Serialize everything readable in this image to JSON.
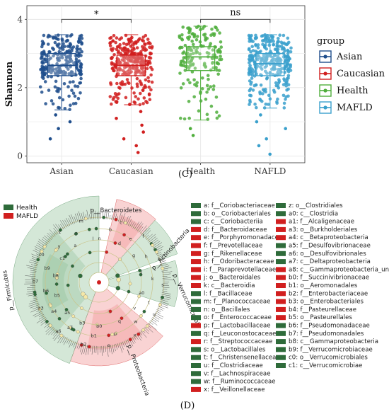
{
  "chart_data": [
    {
      "type": "box",
      "panel_label": "(C)",
      "ylabel": "Shannon",
      "xlabel": "",
      "ylim": [
        -0.2,
        4.4
      ],
      "yticks": [
        0,
        2,
        4
      ],
      "categories": [
        "Asian",
        "Caucasian",
        "Health",
        "NAFLD"
      ],
      "grid": true,
      "legend": {
        "title": "group",
        "position": "right",
        "items": [
          {
            "label": "Asian",
            "color": "#1f4e8c"
          },
          {
            "label": "Caucasian",
            "color": "#d11f1f"
          },
          {
            "label": "Health",
            "color": "#4fae3c"
          },
          {
            "label": "MAFLD",
            "color": "#3aa0cc"
          }
        ]
      },
      "series": [
        {
          "category": "Asian",
          "color": "#1f4e8c",
          "q1": 2.35,
          "median": 2.65,
          "q3": 3.0,
          "whisker_low": 1.35,
          "whisker_high": 3.55,
          "outliers": [
            1.2,
            1.0,
            0.8,
            0.5
          ],
          "n_points": 260
        },
        {
          "category": "Caucasian",
          "color": "#d11f1f",
          "q1": 2.35,
          "median": 2.65,
          "q3": 2.95,
          "whisker_low": 1.5,
          "whisker_high": 3.55,
          "outliers": [
            1.3,
            1.1,
            0.9,
            0.7,
            0.5,
            0.3,
            0.1
          ],
          "n_points": 300
        },
        {
          "category": "Health",
          "color": "#4fae3c",
          "q1": 2.5,
          "median": 2.9,
          "q3": 3.2,
          "whisker_low": 1.05,
          "whisker_high": 3.8,
          "outliers": [
            0.8,
            0.6
          ],
          "n_points": 180
        },
        {
          "category": "NAFLD",
          "color": "#3aa0cc",
          "q1": 2.35,
          "median": 2.7,
          "q3": 3.0,
          "whisker_low": 1.4,
          "whisker_high": 3.55,
          "outliers": [
            1.2,
            1.0,
            0.8,
            0.5,
            0.3,
            0.05
          ],
          "n_points": 320
        }
      ],
      "annotations": [
        {
          "between": [
            "Asian",
            "Caucasian"
          ],
          "text": "*",
          "y": 4.0
        },
        {
          "between": [
            "Health",
            "NAFLD"
          ],
          "text": "ns",
          "y": 4.0
        }
      ]
    },
    {
      "type": "cladogram",
      "panel_label": "(D)",
      "legend": [
        {
          "label": "Health",
          "color": "#2e6b3a"
        },
        {
          "label": "MAFLD",
          "color": "#d11f1f"
        }
      ],
      "phyla": [
        {
          "name": "p__Bacteroidetes",
          "group": "MAFLD"
        },
        {
          "name": "p__Actinobacteria",
          "group": "Health"
        },
        {
          "name": "p__Verrucomicrobia",
          "group": "Health"
        },
        {
          "name": "p__Proteobacteria",
          "group": "MAFLD"
        },
        {
          "name": "p__Firmicutes",
          "group": "Health"
        }
      ],
      "clade_labels": [
        "n",
        "b",
        "c",
        "d",
        "e",
        "f",
        "g",
        "h",
        "i",
        "j",
        "k",
        "s",
        "a0",
        "t",
        "u",
        "v",
        "w",
        "x",
        "q",
        "p",
        "o",
        "b0",
        "b1",
        "b2",
        "b3",
        "a7",
        "a6",
        "a5",
        "a4",
        "a3",
        "b5",
        "b6",
        "b7",
        "b8",
        "b9",
        "c0",
        "c1",
        "y",
        "z",
        "a",
        "r",
        "m",
        "l"
      ],
      "key_left": [
        {
          "text": "a: f__Coriobacteriaceae",
          "group": "Health"
        },
        {
          "text": "b: o__Coriobacteriales",
          "group": "Health"
        },
        {
          "text": "c: c__Coriobacteriia",
          "group": "Health"
        },
        {
          "text": "d: f__Bacteroidaceae",
          "group": "MAFLD"
        },
        {
          "text": "e: f__Porphyromonadaceae",
          "group": "MAFLD"
        },
        {
          "text": "f: f__Prevotellaceae",
          "group": "MAFLD"
        },
        {
          "text": "g: f__Rikenellaceae",
          "group": "MAFLD"
        },
        {
          "text": "h: f__Odoribacteraceae",
          "group": "MAFLD"
        },
        {
          "text": "i: f__Paraprevotellaceae",
          "group": "MAFLD"
        },
        {
          "text": "j: o__Bacteroidales",
          "group": "MAFLD"
        },
        {
          "text": "k: c__Bacteroidia",
          "group": "MAFLD"
        },
        {
          "text": "l: f__Bacillaceae",
          "group": "Health"
        },
        {
          "text": "m: f__Planococcaceae",
          "group": "Health"
        },
        {
          "text": "n: o__Bacillales",
          "group": "Health"
        },
        {
          "text": "o: f__Enterococcaceae",
          "group": "Health"
        },
        {
          "text": "p: f__Lactobacillaceae",
          "group": "MAFLD"
        },
        {
          "text": "q: f__Leuconostocaceae",
          "group": "Health"
        },
        {
          "text": "r: f__Streptococcaceae",
          "group": "MAFLD"
        },
        {
          "text": "s: o__Lactobacillales",
          "group": "Health"
        },
        {
          "text": "t: f__Christensenellaceae",
          "group": "Health"
        },
        {
          "text": "u: f__Clostridiaceae",
          "group": "Health"
        },
        {
          "text": "v: f__Lachnospiraceae",
          "group": "Health"
        },
        {
          "text": "w: f__Ruminococcaceae",
          "group": "Health"
        },
        {
          "text": "x: f__Veillonellaceae",
          "group": "MAFLD"
        }
      ],
      "key_right": [
        {
          "text": "z: o__Clostridiales",
          "group": "Health"
        },
        {
          "text": "a0: c__Clostridia",
          "group": "Health"
        },
        {
          "text": "a1: f__Alcaligenaceae",
          "group": "MAFLD"
        },
        {
          "text": "a3: o__Burkholderiales",
          "group": "MAFLD"
        },
        {
          "text": "a4: c__Betaproteobacteria",
          "group": "MAFLD"
        },
        {
          "text": "a5: f__Desulfovibrionaceae",
          "group": "Health"
        },
        {
          "text": "a6: o__Desulfovibrionales",
          "group": "Health"
        },
        {
          "text": "a7: c__Deltaproteobacteria",
          "group": "Health"
        },
        {
          "text": "a8: c__Gammaproteobacteria_unclassified",
          "group": "MAFLD"
        },
        {
          "text": "b0: f__Succinivibrionaceae",
          "group": "MAFLD"
        },
        {
          "text": "b1: o__Aeromonadales",
          "group": "MAFLD"
        },
        {
          "text": "b2: f__Enterobacteriaceae",
          "group": "MAFLD"
        },
        {
          "text": "b3: o__Enterobacteriales",
          "group": "MAFLD"
        },
        {
          "text": "b4: f__Pasteurellaceae",
          "group": "MAFLD"
        },
        {
          "text": "b5: o__Pasteurellales",
          "group": "MAFLD"
        },
        {
          "text": "b6: f__Pseudomonadaceae",
          "group": "Health"
        },
        {
          "text": "b7: f__Pseudomonadales",
          "group": "Health"
        },
        {
          "text": "b8: c__Gammaproteobacteria",
          "group": "Health"
        },
        {
          "text": "b9: f__Verrucomicrobiaceae",
          "group": "Health"
        },
        {
          "text": "c0: o__Verrucomicrobiales",
          "group": "Health"
        },
        {
          "text": "c1: c__Verrucomicrobiae",
          "group": "Health"
        }
      ]
    }
  ],
  "labels": {
    "panel_c": "(C)",
    "panel_d": "(D)",
    "ylabel": "Shannon",
    "legend_title": "group"
  }
}
